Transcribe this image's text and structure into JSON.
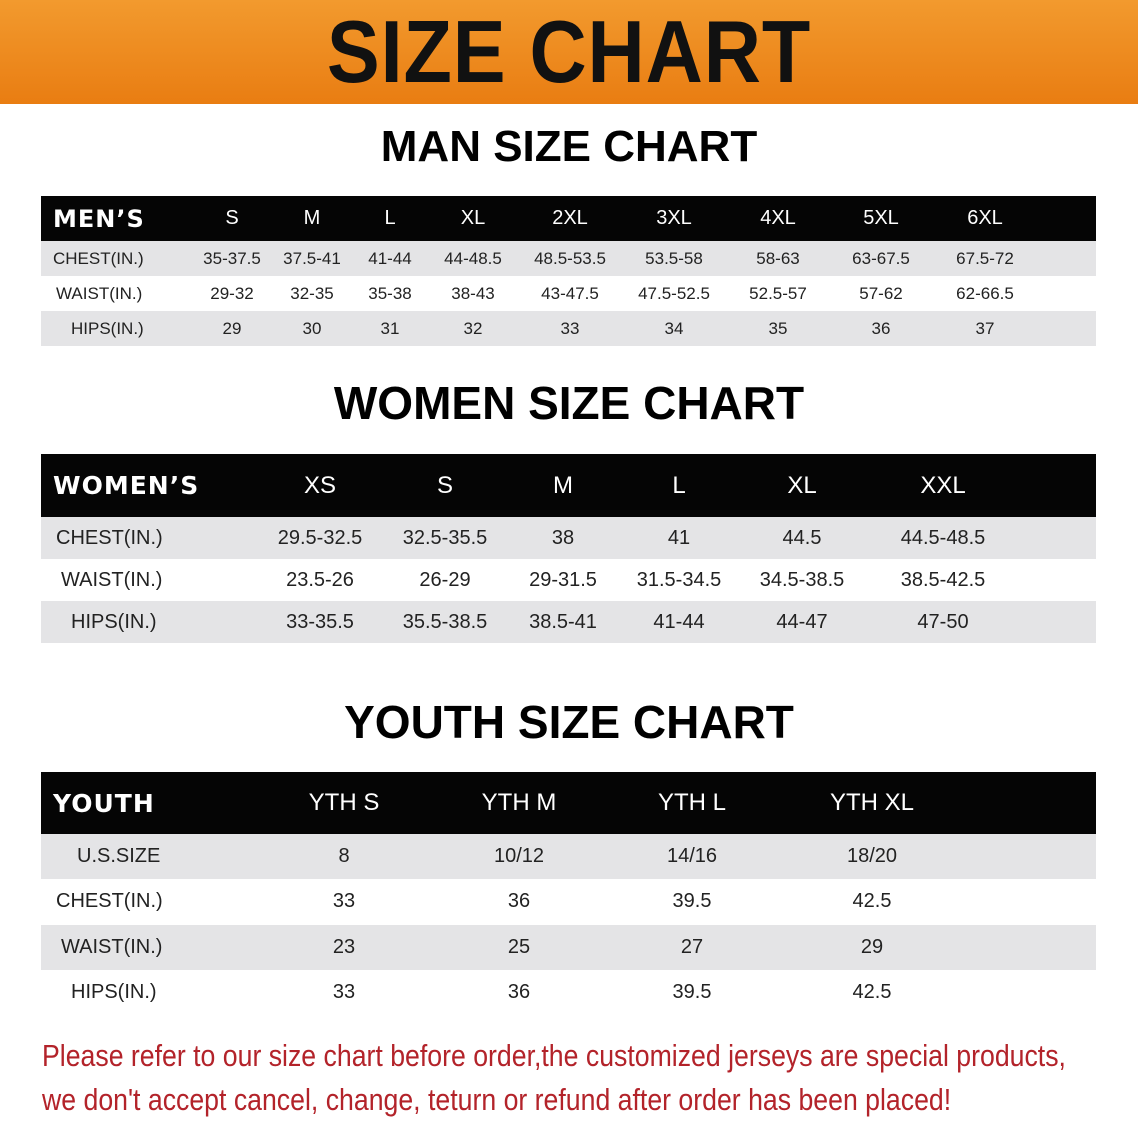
{
  "banner_title": "SIZE CHART",
  "men": {
    "title": "MAN SIZE CHART",
    "header": [
      "MEN’S",
      "S",
      "M",
      "L",
      "XL",
      "2XL",
      "3XL",
      "4XL",
      "5XL",
      "6XL"
    ],
    "rows": [
      [
        "CHEST(IN.)",
        "35-37.5",
        "37.5-41",
        "41-44",
        "44-48.5",
        "48.5-53.5",
        "53.5-58",
        "58-63",
        "63-67.5",
        "67.5-72"
      ],
      [
        "WAIST(IN.)",
        "29-32",
        "32-35",
        "35-38",
        "38-43",
        "43-47.5",
        "47.5-52.5",
        "52.5-57",
        "57-62",
        "62-66.5"
      ],
      [
        "HIPS(IN.)",
        "29",
        "30",
        "31",
        "32",
        "33",
        "34",
        "35",
        "36",
        "37"
      ]
    ]
  },
  "women": {
    "title": "WOMEN SIZE CHART",
    "header": [
      "WOMEN’S",
      "XS",
      "S",
      "M",
      "L",
      "XL",
      "XXL"
    ],
    "rows": [
      [
        "CHEST(IN.)",
        "29.5-32.5",
        "32.5-35.5",
        "38",
        "41",
        "44.5",
        "44.5-48.5"
      ],
      [
        "WAIST(IN.)",
        "23.5-26",
        "26-29",
        "29-31.5",
        "31.5-34.5",
        "34.5-38.5",
        "38.5-42.5"
      ],
      [
        "HIPS(IN.)",
        "33-35.5",
        "35.5-38.5",
        "38.5-41",
        "41-44",
        "44-47",
        "47-50"
      ]
    ]
  },
  "youth": {
    "title": "YOUTH SIZE CHART",
    "header": [
      "YOUTH",
      "YTH S",
      "YTH M",
      "YTH L",
      "YTH XL"
    ],
    "rows": [
      [
        "U.S.SIZE",
        "8",
        "10/12",
        "14/16",
        "18/20"
      ],
      [
        "CHEST(IN.)",
        "33",
        "36",
        "39.5",
        "42.5"
      ],
      [
        "WAIST(IN.)",
        "23",
        "25",
        "27",
        "29"
      ],
      [
        "HIPS(IN.)",
        "33",
        "36",
        "39.5",
        "42.5"
      ]
    ]
  },
  "notice": {
    "line1": "Please refer to our size chart before order,the customized jerseys are special products,",
    "line2": "we don't accept cancel, change, teturn or refund after order has been placed!"
  },
  "colors": {
    "banner": "#ee8a1f",
    "header_bg": "#050505",
    "row_alt": "#e4e4e6",
    "notice": "#b3232a"
  }
}
